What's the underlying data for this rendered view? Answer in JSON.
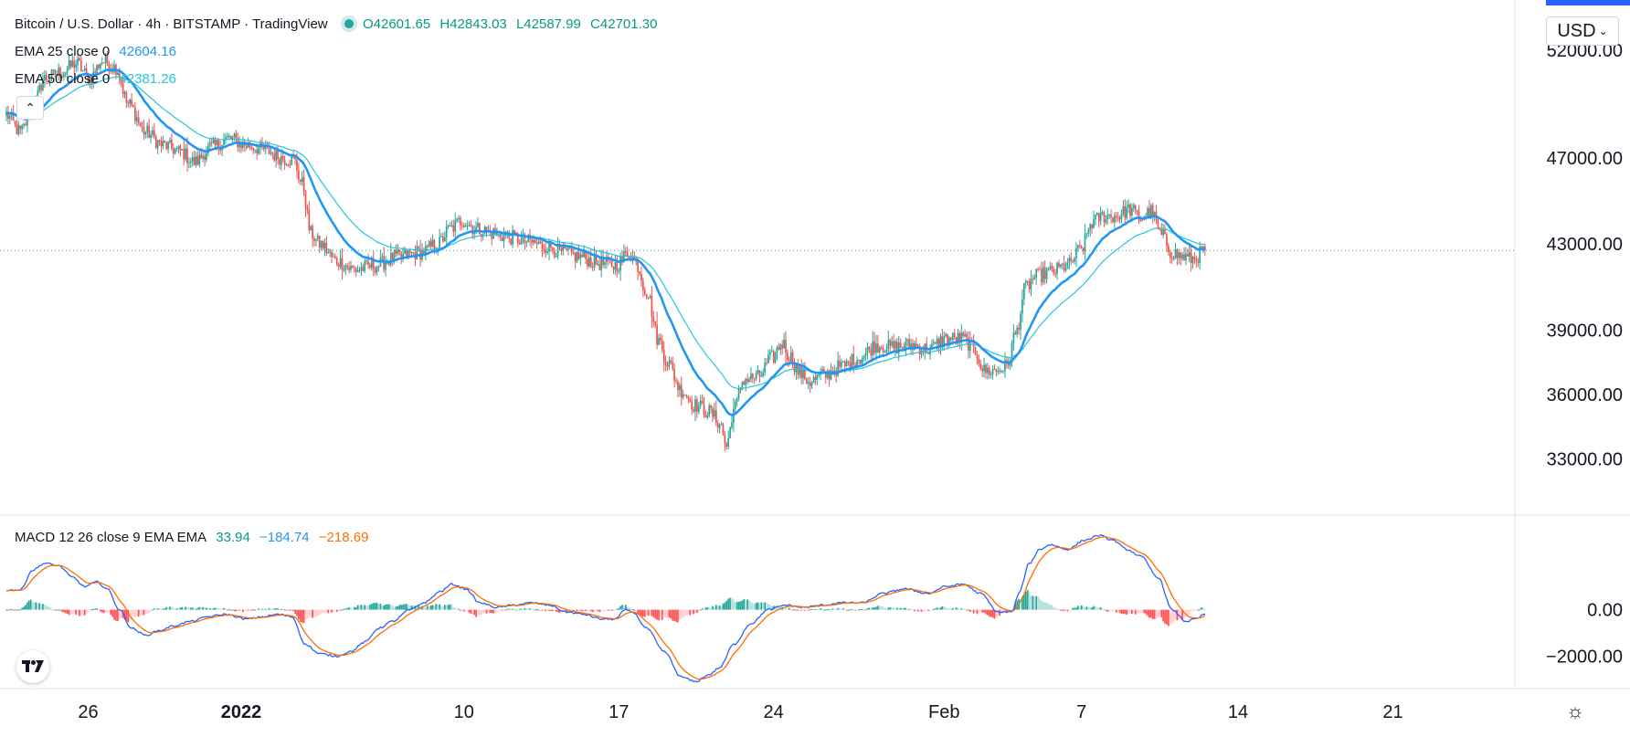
{
  "header": {
    "symbol": "Bitcoin / U.S. Dollar · 4h · BITSTAMP · TradingView",
    "ohlc": {
      "open": "O42601.65",
      "high": "H42843.03",
      "low": "L42587.99",
      "close": "C42701.30"
    },
    "ema25_label": "EMA 25 close 0",
    "ema25_value": "42604.16",
    "ema50_label": "EMA 50 close 0",
    "ema50_value": "42381.26",
    "macd_label": "MACD 12 26 close 9 EMA EMA",
    "macd_hist_value": "33.94",
    "macd_value": "−184.74",
    "signal_value": "−218.69",
    "currency": "USD"
  },
  "colors": {
    "up": "#26a69a",
    "down": "#ef5350",
    "ema25": "#2196f3",
    "ema50": "#26c6da",
    "macd": "#2962ff",
    "signal": "#ff6d00",
    "hist_up_strong": "#26a69a",
    "hist_up_weak": "#b2dfdb",
    "hist_down_strong": "#ff5252",
    "hist_down_weak": "#ffcdd2"
  },
  "chart_data": [
    {
      "type": "candlestick",
      "title": "Bitcoin / U.S. Dollar · 4h · BITSTAMP",
      "ylim": [
        30400,
        54000
      ],
      "price_ticks": [
        "52000.00",
        "47000.00",
        "43000.00",
        "39000.00",
        "36000.00",
        "33000.00"
      ],
      "price_tick_values": [
        52000,
        47000,
        43000,
        39000,
        36000,
        33000
      ],
      "time_ticks": [
        "26",
        "2022",
        "10",
        "17",
        "24",
        "Feb",
        "7",
        "14",
        "21"
      ],
      "time_tick_bars": [
        47,
        135,
        263,
        352,
        441,
        539,
        618,
        708,
        797
      ],
      "last_price": 42701.3,
      "num_bars": 690,
      "close_anchors": [
        [
          0,
          49000
        ],
        [
          8,
          48200
        ],
        [
          15,
          49300
        ],
        [
          22,
          50700
        ],
        [
          32,
          51000
        ],
        [
          40,
          51400
        ],
        [
          48,
          50700
        ],
        [
          55,
          51500
        ],
        [
          63,
          51200
        ],
        [
          70,
          49500
        ],
        [
          80,
          48200
        ],
        [
          90,
          47600
        ],
        [
          100,
          47300
        ],
        [
          108,
          46800
        ],
        [
          118,
          47500
        ],
        [
          128,
          47900
        ],
        [
          138,
          47600
        ],
        [
          148,
          47400
        ],
        [
          158,
          47000
        ],
        [
          165,
          46900
        ],
        [
          170,
          45800
        ],
        [
          175,
          43500
        ],
        [
          180,
          43000
        ],
        [
          190,
          42200
        ],
        [
          200,
          41800
        ],
        [
          212,
          42000
        ],
        [
          225,
          42400
        ],
        [
          238,
          42600
        ],
        [
          248,
          43000
        ],
        [
          255,
          43700
        ],
        [
          262,
          44100
        ],
        [
          270,
          43700
        ],
        [
          280,
          43500
        ],
        [
          290,
          43300
        ],
        [
          300,
          43100
        ],
        [
          310,
          42900
        ],
        [
          320,
          42600
        ],
        [
          330,
          42400
        ],
        [
          340,
          42100
        ],
        [
          350,
          42000
        ],
        [
          358,
          42600
        ],
        [
          362,
          42100
        ],
        [
          368,
          40800
        ],
        [
          375,
          38500
        ],
        [
          380,
          37500
        ],
        [
          388,
          36200
        ],
        [
          396,
          35500
        ],
        [
          404,
          35200
        ],
        [
          410,
          34700
        ],
        [
          414,
          33600
        ],
        [
          418,
          35300
        ],
        [
          424,
          36700
        ],
        [
          432,
          36800
        ],
        [
          440,
          37700
        ],
        [
          446,
          38400
        ],
        [
          450,
          37800
        ],
        [
          456,
          37000
        ],
        [
          462,
          36600
        ],
        [
          470,
          36900
        ],
        [
          480,
          37300
        ],
        [
          490,
          37700
        ],
        [
          500,
          38300
        ],
        [
          510,
          38200
        ],
        [
          520,
          38300
        ],
        [
          530,
          38100
        ],
        [
          540,
          38600
        ],
        [
          550,
          38600
        ],
        [
          557,
          38000
        ],
        [
          562,
          37100
        ],
        [
          568,
          37100
        ],
        [
          575,
          37300
        ],
        [
          580,
          38800
        ],
        [
          586,
          41000
        ],
        [
          592,
          41500
        ],
        [
          600,
          41700
        ],
        [
          610,
          42000
        ],
        [
          618,
          42800
        ],
        [
          624,
          44000
        ],
        [
          630,
          44300
        ],
        [
          638,
          44300
        ],
        [
          646,
          44600
        ],
        [
          652,
          44200
        ],
        [
          658,
          44500
        ],
        [
          664,
          43400
        ],
        [
          670,
          42600
        ],
        [
          676,
          42400
        ],
        [
          682,
          42300
        ],
        [
          689,
          42700
        ]
      ],
      "macd_anchors": [
        [
          0,
          850
        ],
        [
          8,
          850
        ],
        [
          15,
          1700
        ],
        [
          22,
          2000
        ],
        [
          30,
          1900
        ],
        [
          38,
          1400
        ],
        [
          45,
          1000
        ],
        [
          52,
          1200
        ],
        [
          58,
          900
        ],
        [
          65,
          0
        ],
        [
          72,
          -800
        ],
        [
          80,
          -1100
        ],
        [
          88,
          -900
        ],
        [
          96,
          -700
        ],
        [
          106,
          -500
        ],
        [
          116,
          -300
        ],
        [
          126,
          -200
        ],
        [
          138,
          -400
        ],
        [
          148,
          -300
        ],
        [
          156,
          -200
        ],
        [
          164,
          -300
        ],
        [
          172,
          -1500
        ],
        [
          180,
          -1900
        ],
        [
          190,
          -2000
        ],
        [
          198,
          -1800
        ],
        [
          206,
          -1400
        ],
        [
          214,
          -800
        ],
        [
          222,
          -500
        ],
        [
          232,
          0
        ],
        [
          240,
          300
        ],
        [
          250,
          800
        ],
        [
          256,
          1100
        ],
        [
          264,
          900
        ],
        [
          272,
          300
        ],
        [
          282,
          100
        ],
        [
          292,
          200
        ],
        [
          302,
          300
        ],
        [
          312,
          200
        ],
        [
          322,
          -100
        ],
        [
          332,
          -200
        ],
        [
          342,
          -400
        ],
        [
          350,
          -400
        ],
        [
          356,
          0
        ],
        [
          360,
          -100
        ],
        [
          368,
          -800
        ],
        [
          378,
          -1800
        ],
        [
          388,
          -2900
        ],
        [
          396,
          -3100
        ],
        [
          404,
          -2800
        ],
        [
          410,
          -2500
        ],
        [
          418,
          -1500
        ],
        [
          428,
          -600
        ],
        [
          438,
          0
        ],
        [
          448,
          200
        ],
        [
          458,
          100
        ],
        [
          470,
          200
        ],
        [
          480,
          300
        ],
        [
          492,
          300
        ],
        [
          504,
          700
        ],
        [
          516,
          900
        ],
        [
          530,
          700
        ],
        [
          540,
          1000
        ],
        [
          550,
          1100
        ],
        [
          560,
          700
        ],
        [
          570,
          -100
        ],
        [
          578,
          -100
        ],
        [
          582,
          700
        ],
        [
          588,
          2000
        ],
        [
          594,
          2600
        ],
        [
          600,
          2800
        ],
        [
          610,
          2600
        ],
        [
          620,
          3000
        ],
        [
          628,
          3200
        ],
        [
          636,
          3000
        ],
        [
          644,
          2600
        ],
        [
          652,
          2300
        ],
        [
          662,
          1400
        ],
        [
          670,
          0
        ],
        [
          678,
          -500
        ],
        [
          684,
          -400
        ],
        [
          689,
          -185
        ]
      ],
      "series": [
        {
          "name": "EMA 25 close 0",
          "period": 25,
          "last_value": 42604.16
        },
        {
          "name": "EMA 50 close 0",
          "period": 50,
          "last_value": 42381.26
        }
      ]
    },
    {
      "type": "macd",
      "title": "MACD 12 26 close 9 EMA EMA",
      "ylim": [
        -3400,
        4000
      ],
      "ticks": [
        "0.00",
        "−2000.00"
      ],
      "tick_values": [
        0,
        -2000
      ],
      "last_values": {
        "histogram": 33.94,
        "macd": -184.74,
        "signal": -218.69
      }
    }
  ]
}
